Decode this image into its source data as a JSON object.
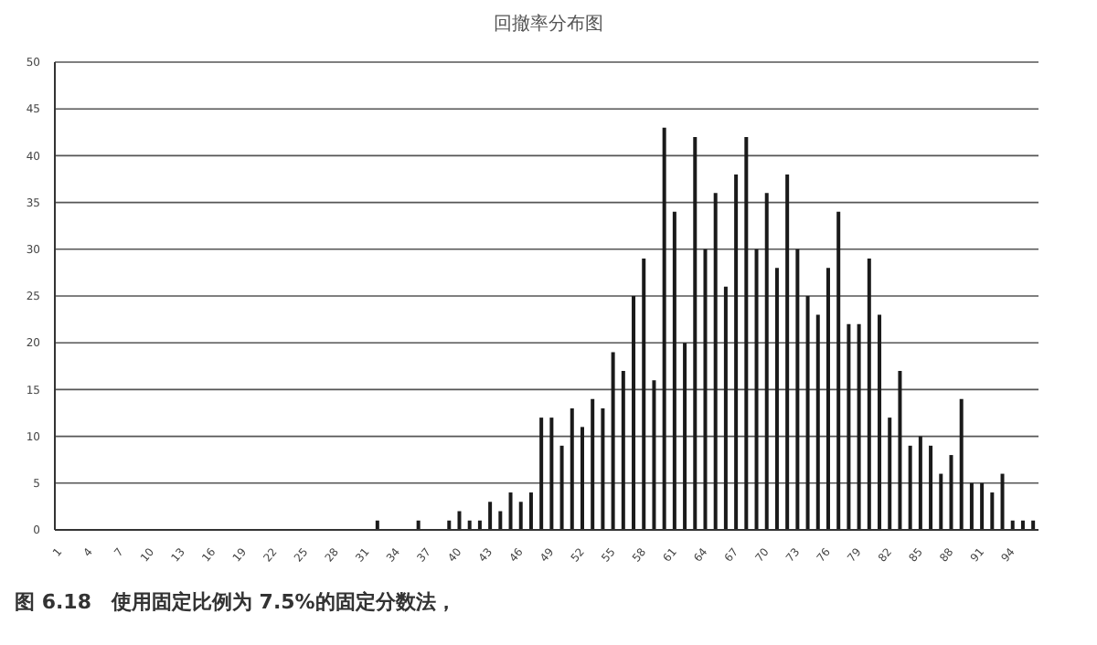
{
  "chart_data": {
    "type": "bar",
    "title": "回撤率分布图",
    "categories": [
      "1",
      null,
      null,
      "4",
      null,
      null,
      "7",
      null,
      null,
      "10",
      null,
      null,
      "13",
      null,
      null,
      "16",
      null,
      null,
      "19",
      null,
      null,
      "22",
      null,
      null,
      "25",
      null,
      null,
      "28",
      null,
      null,
      "31",
      null,
      null,
      "34",
      null,
      null,
      "37",
      null,
      null,
      "40",
      null,
      null,
      "43",
      null,
      null,
      "46",
      null,
      null,
      "49",
      null,
      null,
      "52",
      null,
      null,
      "55",
      null,
      null,
      "58",
      null,
      null,
      "61",
      null,
      null,
      "64",
      null,
      null,
      "67",
      null,
      null,
      "70",
      null,
      null,
      "73",
      null,
      null,
      "76",
      null,
      null,
      "79",
      null,
      null,
      "82",
      null,
      null,
      "85",
      null,
      null,
      "88",
      null,
      null,
      "91",
      null,
      null,
      "94",
      null,
      null
    ],
    "values": [
      0,
      0,
      0,
      0,
      0,
      0,
      0,
      0,
      0,
      0,
      0,
      0,
      0,
      0,
      0,
      0,
      0,
      0,
      0,
      0,
      0,
      0,
      0,
      0,
      0,
      0,
      0,
      0,
      0,
      0,
      0,
      1,
      0,
      0,
      0,
      1,
      0,
      0,
      1,
      2,
      1,
      1,
      3,
      2,
      4,
      3,
      4,
      12,
      12,
      9,
      13,
      11,
      14,
      13,
      19,
      17,
      25,
      29,
      16,
      43,
      34,
      20,
      42,
      30,
      36,
      26,
      38,
      42,
      30,
      36,
      28,
      38,
      30,
      25,
      23,
      28,
      34,
      22,
      22,
      29,
      23,
      12,
      17,
      9,
      10,
      9,
      6,
      8,
      14,
      5,
      5,
      4,
      6,
      1,
      1,
      1
    ],
    "color": "#1a1a1a",
    "ylim": [
      0,
      50
    ],
    "yticks": [
      0,
      5,
      10,
      15,
      20,
      25,
      30,
      35,
      40,
      45,
      50
    ],
    "grid": "y",
    "annotations": [
      "图 6.18　使用固定比例为 7.5%的固定分数法，"
    ]
  }
}
